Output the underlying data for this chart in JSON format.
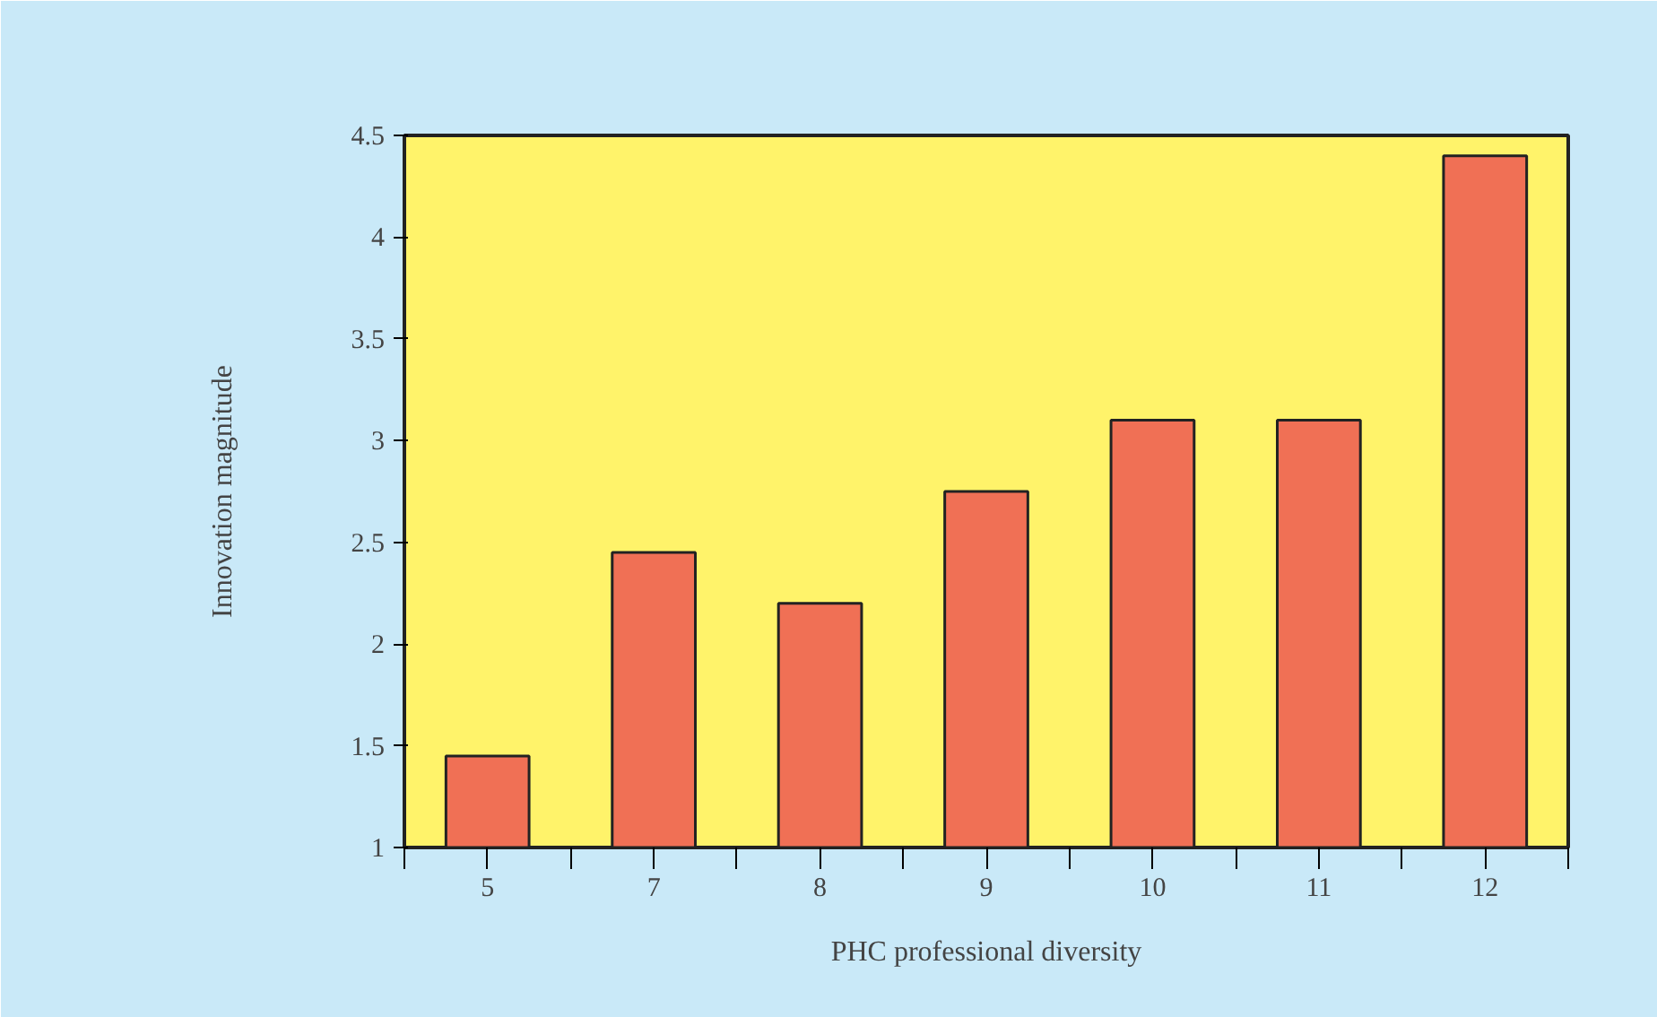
{
  "chart_data": {
    "type": "bar",
    "xlabel": "PHC professional diversity",
    "ylabel": "Innovation magnitude",
    "categories": [
      "5",
      "7",
      "8",
      "9",
      "10",
      "11",
      "12"
    ],
    "values": [
      1.45,
      2.45,
      2.2,
      2.75,
      3.1,
      3.1,
      4.4
    ],
    "color": "#f07055",
    "ylim": [
      1,
      4.5
    ],
    "yticks": [
      1,
      1.5,
      2,
      2.5,
      3,
      3.5,
      4,
      4.5
    ],
    "grid": false
  }
}
